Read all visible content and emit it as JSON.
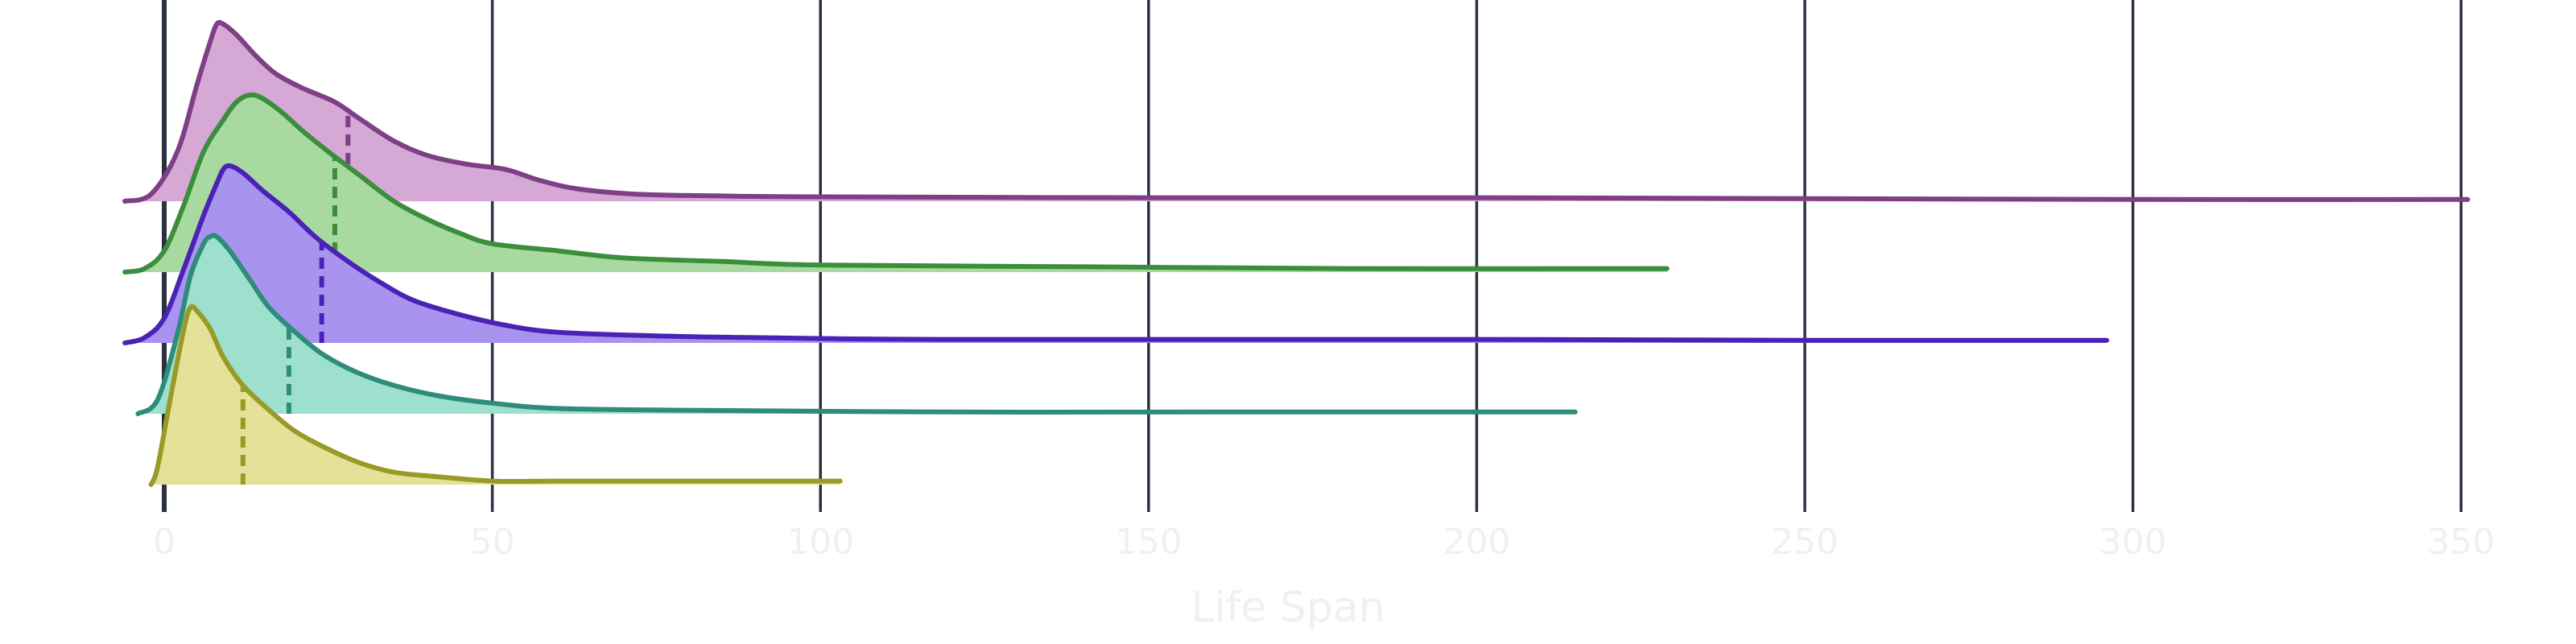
{
  "chart_data": {
    "type": "ridgeline",
    "title": "",
    "xlabel": "Life Span",
    "ylabel": "",
    "xlim": [
      -6,
      355
    ],
    "x_ticks": [
      0,
      50,
      100,
      150,
      200,
      250,
      300,
      350
    ],
    "x_tick_labels": [
      "0",
      "50",
      "100",
      "150",
      "200",
      "250",
      "300",
      "350"
    ],
    "grid": "vertical",
    "legend": "none",
    "series": [
      {
        "color": "#7e3f86",
        "fill": "#d5a8d6",
        "median": 28,
        "curve": [
          [
            -6,
            0
          ],
          [
            -2,
            0.04
          ],
          [
            2,
            0.28
          ],
          [
            5,
            0.66
          ],
          [
            7,
            0.9
          ],
          [
            8,
            1.0
          ],
          [
            9,
            1.0
          ],
          [
            11,
            0.94
          ],
          [
            14,
            0.82
          ],
          [
            17,
            0.72
          ],
          [
            21,
            0.64
          ],
          [
            26,
            0.56
          ],
          [
            30,
            0.46
          ],
          [
            35,
            0.34
          ],
          [
            40,
            0.26
          ],
          [
            46,
            0.21
          ],
          [
            52,
            0.18
          ],
          [
            57,
            0.12
          ],
          [
            63,
            0.07
          ],
          [
            72,
            0.04
          ],
          [
            85,
            0.03
          ],
          [
            100,
            0.025
          ],
          [
            150,
            0.02
          ],
          [
            200,
            0.02
          ],
          [
            250,
            0.015
          ],
          [
            300,
            0.01
          ],
          [
            351,
            0.01
          ]
        ]
      },
      {
        "color": "#3a8e3c",
        "fill": "#a8d9a0",
        "median": 26,
        "curve": [
          [
            -6,
            0
          ],
          [
            -3,
            0.02
          ],
          [
            0,
            0.12
          ],
          [
            3,
            0.38
          ],
          [
            6,
            0.68
          ],
          [
            9,
            0.86
          ],
          [
            11,
            0.96
          ],
          [
            13,
            1.0
          ],
          [
            15,
            0.98
          ],
          [
            18,
            0.9
          ],
          [
            21,
            0.8
          ],
          [
            25,
            0.68
          ],
          [
            30,
            0.54
          ],
          [
            35,
            0.4
          ],
          [
            40,
            0.3
          ],
          [
            45,
            0.22
          ],
          [
            50,
            0.16
          ],
          [
            60,
            0.12
          ],
          [
            70,
            0.08
          ],
          [
            85,
            0.06
          ],
          [
            100,
            0.04
          ],
          [
            140,
            0.03
          ],
          [
            180,
            0.02
          ],
          [
            229,
            0.02
          ]
        ]
      },
      {
        "color": "#4a22b5",
        "fill": "#a893ef",
        "median": 24,
        "curve": [
          [
            -6,
            0
          ],
          [
            -3,
            0.03
          ],
          [
            0,
            0.14
          ],
          [
            3,
            0.42
          ],
          [
            6,
            0.72
          ],
          [
            8,
            0.9
          ],
          [
            9,
            0.98
          ],
          [
            10,
            1.0
          ],
          [
            12,
            0.96
          ],
          [
            15,
            0.86
          ],
          [
            19,
            0.74
          ],
          [
            23,
            0.6
          ],
          [
            28,
            0.46
          ],
          [
            33,
            0.34
          ],
          [
            38,
            0.24
          ],
          [
            45,
            0.16
          ],
          [
            52,
            0.1
          ],
          [
            60,
            0.06
          ],
          [
            75,
            0.04
          ],
          [
            90,
            0.03
          ],
          [
            120,
            0.02
          ],
          [
            200,
            0.02
          ],
          [
            250,
            0.015
          ],
          [
            296,
            0.015
          ]
        ]
      },
      {
        "color": "#2e8c7a",
        "fill": "#9ce0cd",
        "median": 19,
        "curve": [
          [
            -4,
            0
          ],
          [
            -1,
            0.08
          ],
          [
            2,
            0.45
          ],
          [
            4,
            0.78
          ],
          [
            6,
            0.96
          ],
          [
            7,
            1.0
          ],
          [
            8,
            1.0
          ],
          [
            10,
            0.92
          ],
          [
            13,
            0.76
          ],
          [
            16,
            0.6
          ],
          [
            20,
            0.46
          ],
          [
            24,
            0.34
          ],
          [
            29,
            0.24
          ],
          [
            35,
            0.16
          ],
          [
            42,
            0.1
          ],
          [
            50,
            0.06
          ],
          [
            60,
            0.03
          ],
          [
            80,
            0.02
          ],
          [
            120,
            0.01
          ],
          [
            160,
            0.01
          ],
          [
            215,
            0.01
          ]
        ]
      },
      {
        "color": "#9a9a26",
        "fill": "#e5e199",
        "median": 12,
        "curve": [
          [
            -2,
            0
          ],
          [
            -1,
            0.1
          ],
          [
            1,
            0.5
          ],
          [
            3,
            0.88
          ],
          [
            4,
            1.0
          ],
          [
            5,
            0.98
          ],
          [
            7,
            0.88
          ],
          [
            9,
            0.72
          ],
          [
            12,
            0.56
          ],
          [
            16,
            0.42
          ],
          [
            20,
            0.3
          ],
          [
            25,
            0.2
          ],
          [
            30,
            0.12
          ],
          [
            35,
            0.07
          ],
          [
            40,
            0.05
          ],
          [
            50,
            0.02
          ],
          [
            60,
            0.02
          ],
          [
            80,
            0.02
          ],
          [
            103,
            0.02
          ]
        ]
      }
    ]
  }
}
